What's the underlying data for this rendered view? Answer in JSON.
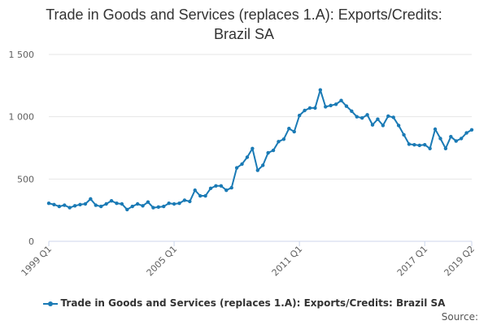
{
  "title_lines": [
    "Trade in Goods and Services (replaces 1.A): Exports/Credits:",
    "Brazil SA"
  ],
  "source_label": "Source:",
  "chart_data": {
    "type": "line",
    "title": "Trade in Goods and Services (replaces 1.A): Exports/Credits: Brazil SA",
    "xlabel": "",
    "ylabel": "",
    "ylim": [
      0,
      1500
    ],
    "yticks": [
      0,
      500,
      1000,
      1500
    ],
    "ytick_labels": [
      "0",
      "500",
      "1 000",
      "1 500"
    ],
    "x_tick_labels": [
      "1999 Q1",
      "2005 Q1",
      "2011 Q1",
      "2017 Q1",
      "2019 Q2"
    ],
    "x_tick_indices": [
      0,
      24,
      48,
      72,
      81
    ],
    "grid": true,
    "legend_position": "bottom",
    "color": "#1a7ab5",
    "categories": [
      "1999 Q1",
      "1999 Q2",
      "1999 Q3",
      "1999 Q4",
      "2000 Q1",
      "2000 Q2",
      "2000 Q3",
      "2000 Q4",
      "2001 Q1",
      "2001 Q2",
      "2001 Q3",
      "2001 Q4",
      "2002 Q1",
      "2002 Q2",
      "2002 Q3",
      "2002 Q4",
      "2003 Q1",
      "2003 Q2",
      "2003 Q3",
      "2003 Q4",
      "2004 Q1",
      "2004 Q2",
      "2004 Q3",
      "2004 Q4",
      "2005 Q1",
      "2005 Q2",
      "2005 Q3",
      "2005 Q4",
      "2006 Q1",
      "2006 Q2",
      "2006 Q3",
      "2006 Q4",
      "2007 Q1",
      "2007 Q2",
      "2007 Q3",
      "2007 Q4",
      "2008 Q1",
      "2008 Q2",
      "2008 Q3",
      "2008 Q4",
      "2009 Q1",
      "2009 Q2",
      "2009 Q3",
      "2009 Q4",
      "2010 Q1",
      "2010 Q2",
      "2010 Q3",
      "2010 Q4",
      "2011 Q1",
      "2011 Q2",
      "2011 Q3",
      "2011 Q4",
      "2012 Q1",
      "2012 Q2",
      "2012 Q3",
      "2012 Q4",
      "2013 Q1",
      "2013 Q2",
      "2013 Q3",
      "2013 Q4",
      "2014 Q1",
      "2014 Q2",
      "2014 Q3",
      "2014 Q4",
      "2015 Q1",
      "2015 Q2",
      "2015 Q3",
      "2015 Q4",
      "2016 Q1",
      "2016 Q2",
      "2016 Q3",
      "2016 Q4",
      "2017 Q1",
      "2017 Q2",
      "2017 Q3",
      "2017 Q4",
      "2018 Q1",
      "2018 Q2",
      "2018 Q3",
      "2018 Q4",
      "2019 Q1",
      "2019 Q2"
    ],
    "series": [
      {
        "name": "Trade in Goods and Services (replaces 1.A): Exports/Credits: Brazil SA",
        "values": [
          305,
          295,
          280,
          290,
          270,
          285,
          295,
          300,
          340,
          290,
          280,
          300,
          325,
          305,
          300,
          255,
          280,
          300,
          285,
          315,
          270,
          275,
          280,
          305,
          300,
          305,
          330,
          320,
          410,
          365,
          365,
          425,
          445,
          445,
          410,
          430,
          590,
          620,
          675,
          745,
          570,
          610,
          710,
          730,
          800,
          820,
          905,
          880,
          1010,
          1050,
          1070,
          1070,
          1215,
          1080,
          1090,
          1100,
          1130,
          1085,
          1045,
          1000,
          990,
          1015,
          935,
          980,
          930,
          1005,
          995,
          930,
          855,
          780,
          775,
          770,
          775,
          745,
          900,
          825,
          745,
          840,
          805,
          825,
          870,
          895
        ]
      }
    ]
  }
}
